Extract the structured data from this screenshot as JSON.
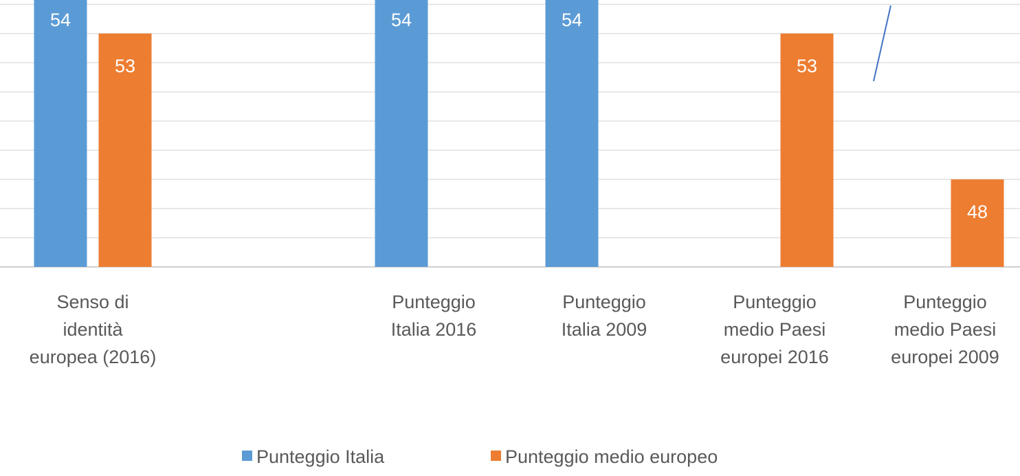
{
  "chart_data": {
    "type": "bar",
    "categories": [
      "Senso di identità europea (2016)",
      null,
      "Punteggio Italia 2016",
      "Punteggio Italia 2009",
      "Punteggio medio Paesi europei 2016",
      "Punteggio medio Paesi europei 2009"
    ],
    "series": [
      {
        "name": "Punteggio Italia",
        "color": "#5b9bd5",
        "values": [
          54.3,
          null,
          54.3,
          54.3,
          null,
          null
        ],
        "value_labels": [
          "54",
          null,
          "54",
          "54",
          null,
          null
        ]
      },
      {
        "name": "Punteggio medio europeo",
        "color": "#ed7d31",
        "values": [
          53,
          null,
          null,
          null,
          53,
          48
        ]
      }
    ],
    "ylim": [
      45,
      54.15
    ],
    "yticks": [
      45,
      46,
      47,
      48,
      49,
      50,
      51,
      52,
      53,
      54
    ],
    "grid": true,
    "legend": "bottom"
  }
}
